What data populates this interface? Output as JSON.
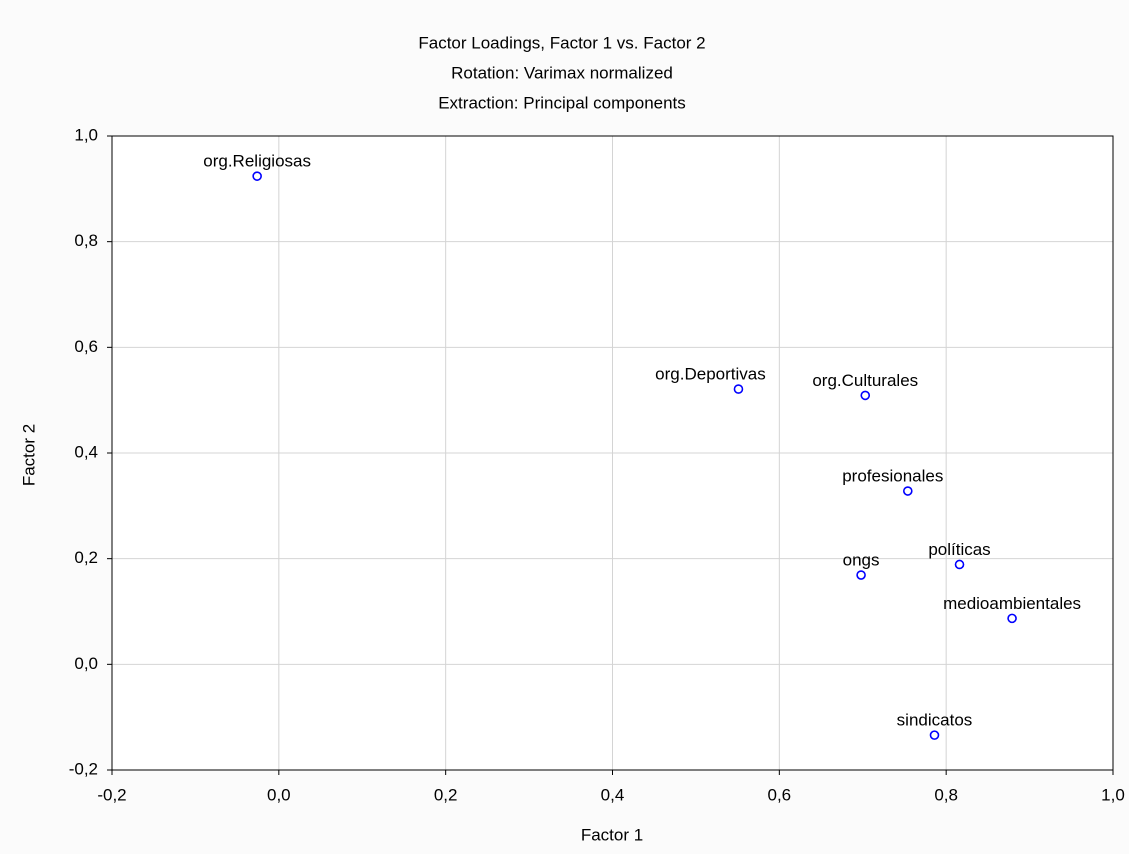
{
  "chart_data": {
    "type": "scatter",
    "title": "Factor Loadings, Factor 1 vs. Factor 2",
    "subtitle": [
      "Rotation: Varimax normalized",
      "Extraction: Principal components"
    ],
    "xlabel": "Factor 1",
    "ylabel": "Factor 2",
    "labels": [
      "org.Religiosas",
      "org.Deportivas",
      "org.Culturales",
      "profesionales",
      "políticas",
      "ongs",
      "medioambientales",
      "sindicatos"
    ],
    "x": [
      -0.026,
      0.551,
      0.703,
      0.754,
      0.816,
      0.698,
      0.879,
      0.786
    ],
    "values": [
      0.924,
      0.521,
      0.509,
      0.328,
      0.189,
      0.169,
      0.087,
      -0.134
    ],
    "color": "#0000ff",
    "xlim": [
      -0.2,
      1.0
    ],
    "ylim": [
      -0.2,
      1.0
    ],
    "xticks": [
      {
        "value": -0.2,
        "label": "-0,2"
      },
      {
        "value": 0,
        "label": "0,0"
      },
      {
        "value": 0.2,
        "label": "0,2"
      },
      {
        "value": 0.4,
        "label": "0,4"
      },
      {
        "value": 0.6,
        "label": "0,6"
      },
      {
        "value": 0.8,
        "label": "0,8"
      },
      {
        "value": 1.0,
        "label": "1,0"
      }
    ],
    "yticks": [
      {
        "value": -0.2,
        "label": "-0,2"
      },
      {
        "value": 0,
        "label": "0,0"
      },
      {
        "value": 0.2,
        "label": "0,2"
      },
      {
        "value": 0.4,
        "label": "0,4"
      },
      {
        "value": 0.6,
        "label": "0,6"
      },
      {
        "value": 0.8,
        "label": "0,8"
      },
      {
        "value": 1.0,
        "label": "1,0"
      }
    ],
    "grid": true
  }
}
